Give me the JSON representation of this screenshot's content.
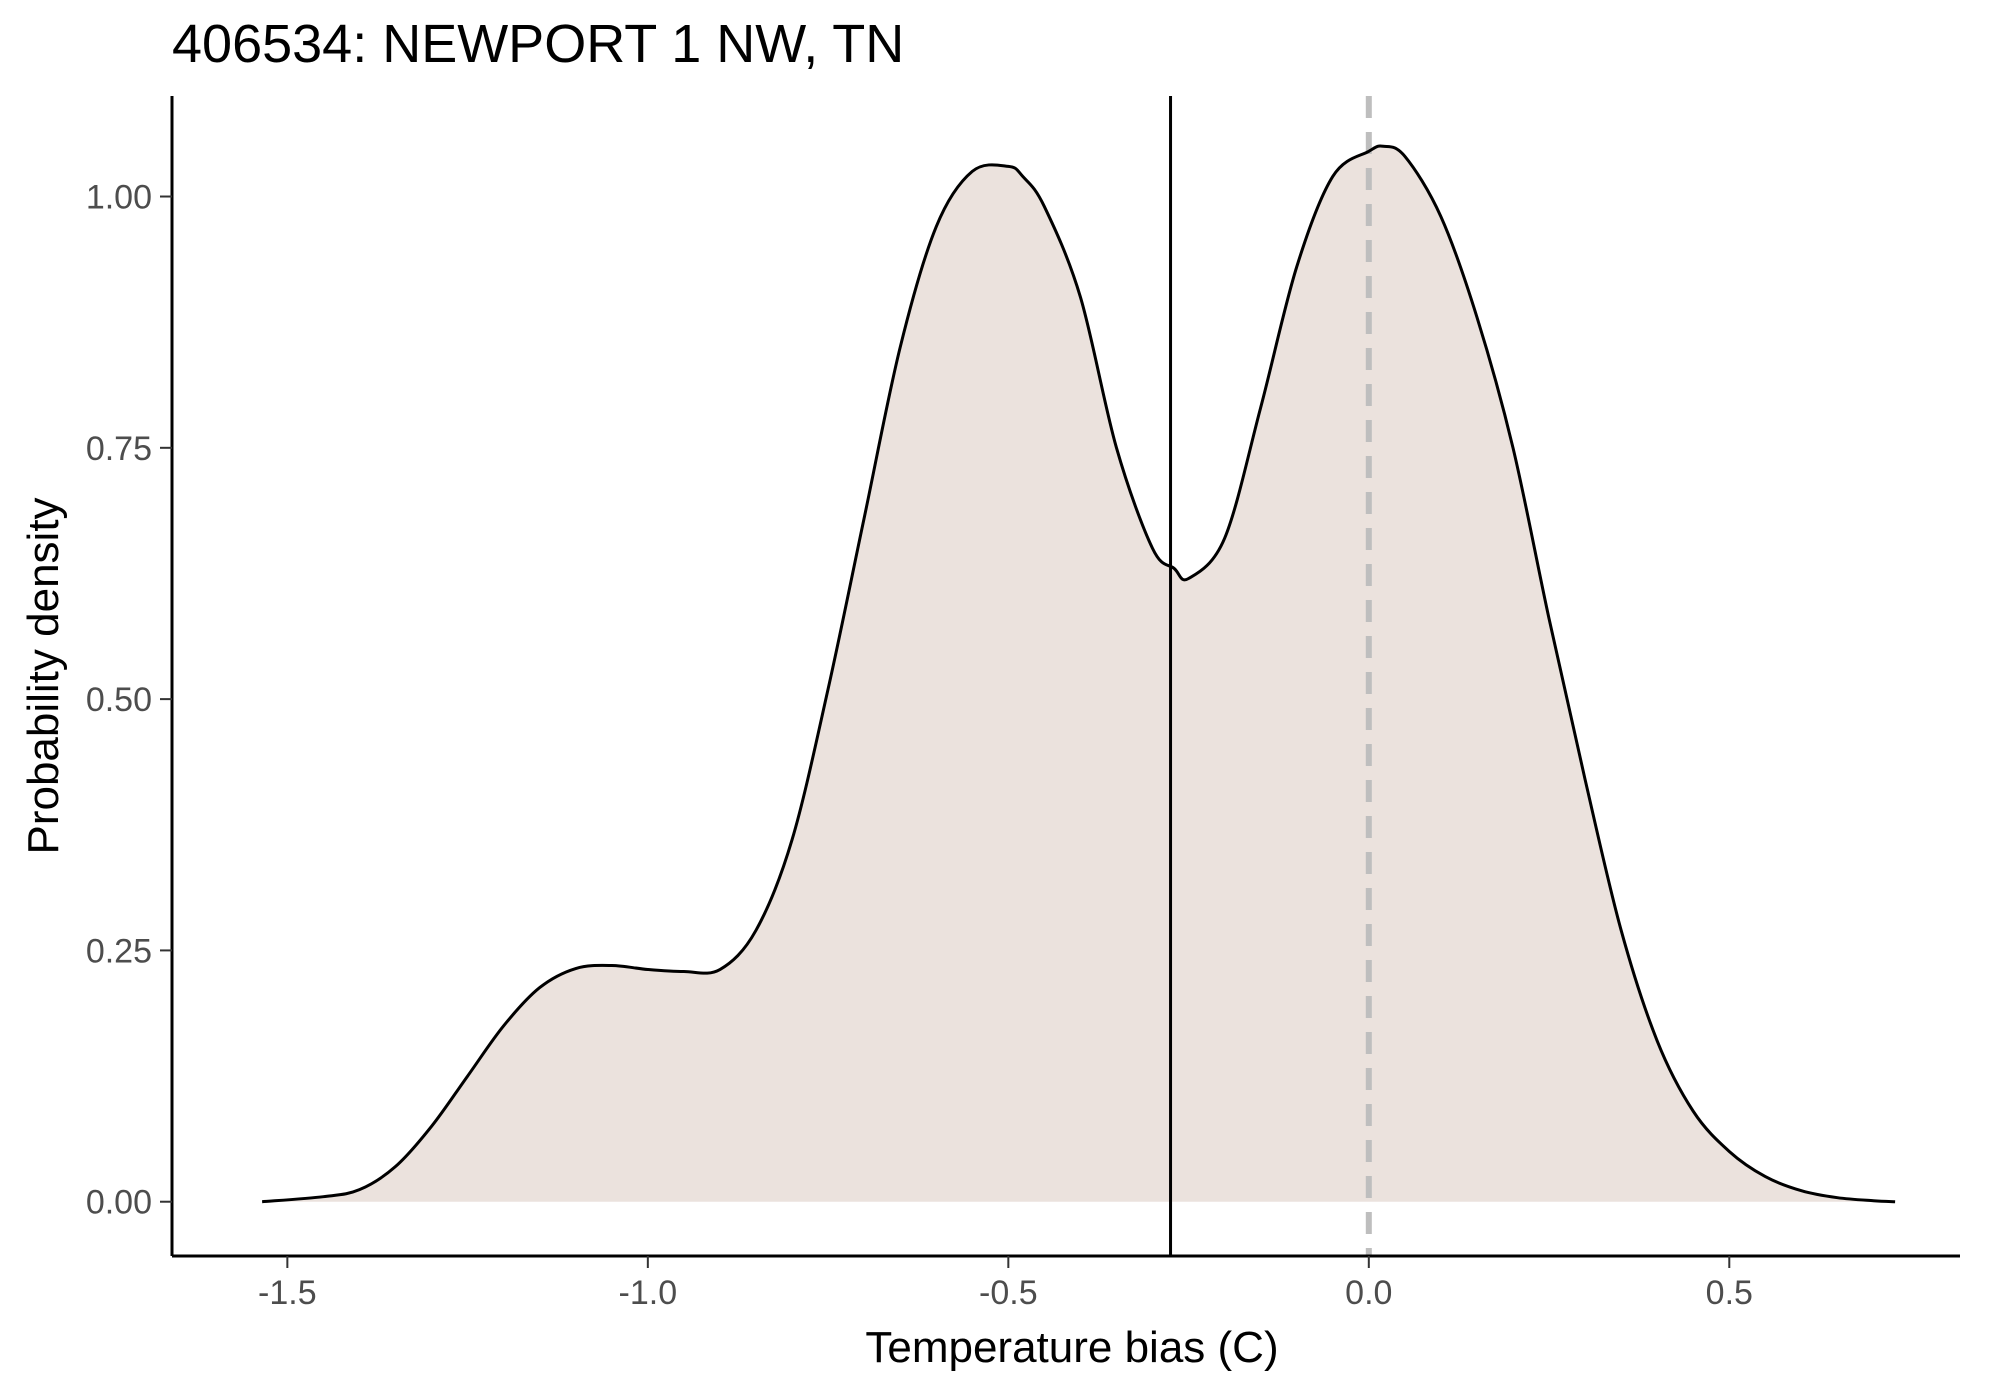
{
  "chart_data": {
    "type": "area",
    "title": "406534: NEWPORT 1 NW, TN",
    "xlabel": "Temperature bias (C)",
    "ylabel": "Probability density",
    "xlim": [
      -1.66,
      0.82
    ],
    "ylim": [
      -0.054,
      1.1
    ],
    "x_ticks": [
      -1.5,
      -1.0,
      -0.5,
      0.0,
      0.5
    ],
    "x_tick_labels": [
      "-1.5",
      "-1.0",
      "-0.5",
      "0.0",
      "0.5"
    ],
    "y_ticks": [
      0.0,
      0.25,
      0.5,
      0.75,
      1.0
    ],
    "y_tick_labels": [
      "0.00",
      "0.25",
      "0.50",
      "0.75",
      "1.00"
    ],
    "grid": false,
    "legend": "none",
    "series": [
      {
        "x": [
          -1.535,
          -1.45,
          -1.4,
          -1.35,
          -1.3,
          -1.25,
          -1.2,
          -1.15,
          -1.1,
          -1.05,
          -1.0,
          -0.95,
          -0.9,
          -0.85,
          -0.8,
          -0.75,
          -0.7,
          -0.65,
          -0.6,
          -0.55,
          -0.5,
          -0.48,
          -0.45,
          -0.4,
          -0.35,
          -0.3,
          -0.27,
          -0.25,
          -0.2,
          -0.15,
          -0.1,
          -0.05,
          0.0,
          0.02,
          0.05,
          0.1,
          0.15,
          0.2,
          0.25,
          0.3,
          0.35,
          0.4,
          0.45,
          0.5,
          0.55,
          0.6,
          0.65,
          0.7,
          0.73
        ],
        "y": [
          0.0,
          0.005,
          0.012,
          0.035,
          0.075,
          0.125,
          0.175,
          0.213,
          0.232,
          0.235,
          0.231,
          0.229,
          0.231,
          0.27,
          0.36,
          0.51,
          0.68,
          0.85,
          0.97,
          1.025,
          1.03,
          1.02,
          0.99,
          0.9,
          0.75,
          0.65,
          0.63,
          0.62,
          0.66,
          0.79,
          0.93,
          1.02,
          1.045,
          1.05,
          1.04,
          0.98,
          0.88,
          0.75,
          0.58,
          0.42,
          0.27,
          0.16,
          0.09,
          0.05,
          0.025,
          0.011,
          0.004,
          0.001,
          0.0
        ]
      }
    ],
    "reference_lines": [
      {
        "axis": "x",
        "value": -0.275,
        "style": "solid",
        "color": "#000000"
      },
      {
        "axis": "x",
        "value": 0.0,
        "style": "dashed",
        "color": "#bebebe"
      }
    ],
    "colors": {
      "fill": "#ebe2dd",
      "line": "#000000",
      "axis": "#000000",
      "tick_label": "#4d4d4d"
    }
  }
}
